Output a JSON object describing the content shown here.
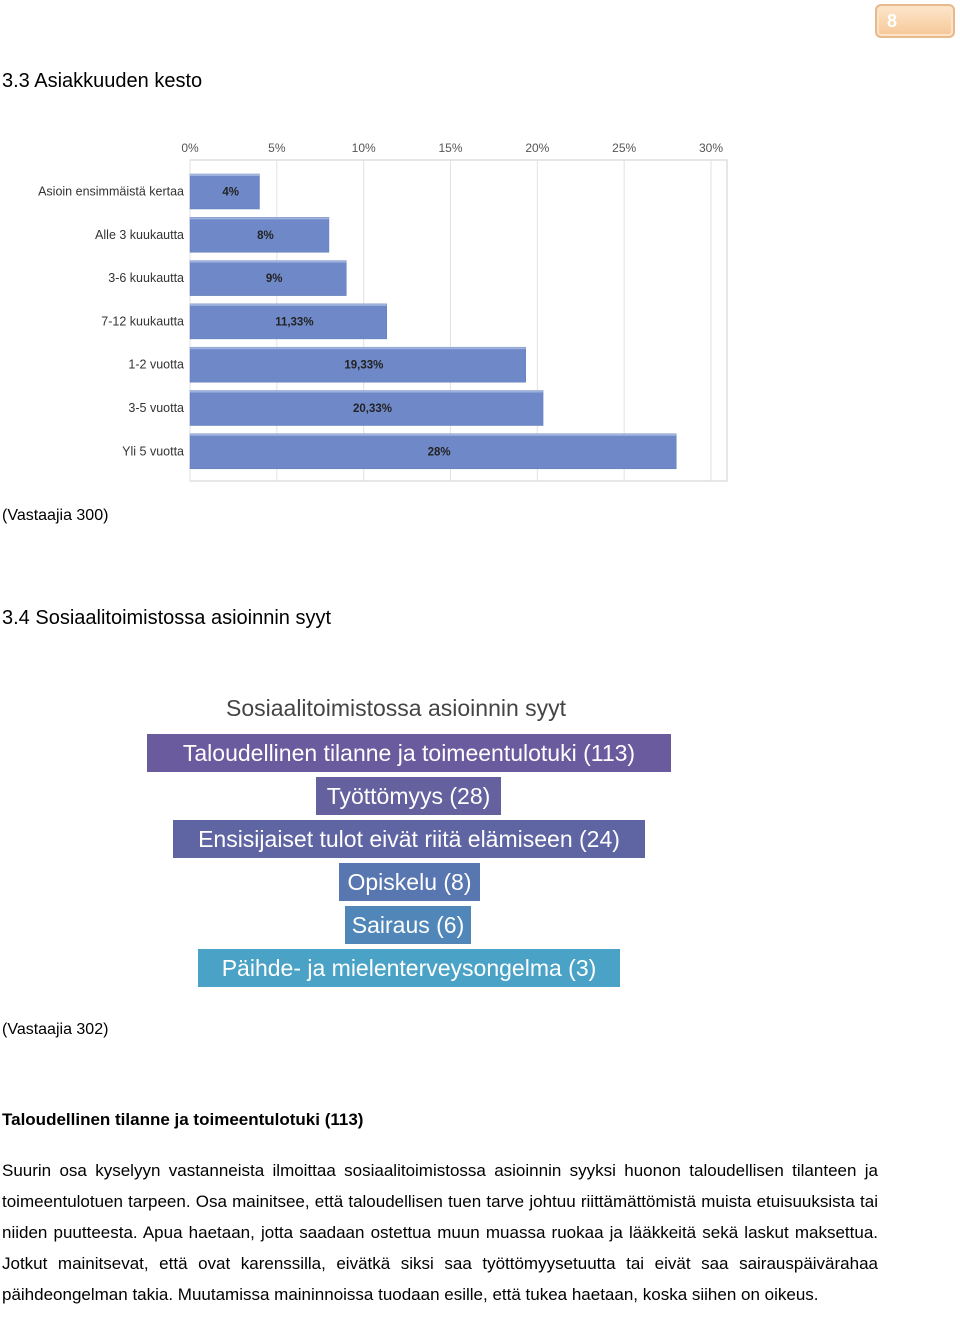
{
  "page": {
    "number": "8"
  },
  "section_33": {
    "heading": "3.3 Asiakkuuden kesto",
    "respondents": "(Vastaajia 300)"
  },
  "chart_data": {
    "type": "bar",
    "orientation": "horizontal",
    "categories": [
      "Asioin ensimmäistä kertaa",
      "Alle 3 kuukautta",
      "3-6 kuukautta",
      "7-12 kuukautta",
      "1-2 vuotta",
      "3-5 vuotta",
      "Yli 5 vuotta"
    ],
    "values": [
      4,
      8,
      9,
      11.33,
      19.33,
      20.33,
      28
    ],
    "value_labels": [
      "4%",
      "8%",
      "9%",
      "11,33%",
      "19,33%",
      "20,33%",
      "28%"
    ],
    "xticks": [
      "0%",
      "5%",
      "10%",
      "15%",
      "20%",
      "25%",
      "30%"
    ],
    "xlim": [
      0,
      30
    ],
    "grid": true,
    "bar_color": "#6f89c8"
  },
  "section_34": {
    "heading": "3.4 Sosiaalitoimistossa asioinnin syyt",
    "respondents": "(Vastaajia 302)",
    "cloud_title": "Sosiaalitoimistossa asioinnin syyt",
    "cloud_items": [
      {
        "label": "Taloudellinen tilanne ja toimeentulotuki (113)",
        "color": "#6a5a9e"
      },
      {
        "label": "Työttömyys (28)",
        "color": "#65619f"
      },
      {
        "label": "Ensisijaiset tulot eivät riitä elämiseen (24)",
        "color": "#5f64a2"
      },
      {
        "label": "Opiskelu (8)",
        "color": "#5876b0"
      },
      {
        "label": "Sairaus (6)",
        "color": "#5086b8"
      },
      {
        "label": "Päihde- ja mielenterveysongelma (3)",
        "color": "#4aa3c6"
      }
    ]
  },
  "section_text": {
    "subheading": "Taloudellinen tilanne ja toimeentulotuki (113)",
    "paragraph": "Suurin osa kyselyyn vastanneista ilmoittaa sosiaalitoimistossa asioinnin syyksi huonon taloudellisen tilanteen ja toimeentulotuen tarpeen. Osa mainitsee, että taloudellisen tuen tarve johtuu riittämättömistä muista etuisuuksista tai niiden puutteesta. Apua haetaan, jotta saadaan ostettua muun muassa ruokaa ja lääkkeitä sekä laskut maksettua. Jotkut mainitsevat, että ovat karenssilla, eivätkä siksi saa työttömyysetuutta tai eivät saa sairauspäivärahaa päihdeongelman takia. Muutamissa maininnoissa tuodaan esille, että tukea haetaan, koska siihen on oikeus."
  }
}
